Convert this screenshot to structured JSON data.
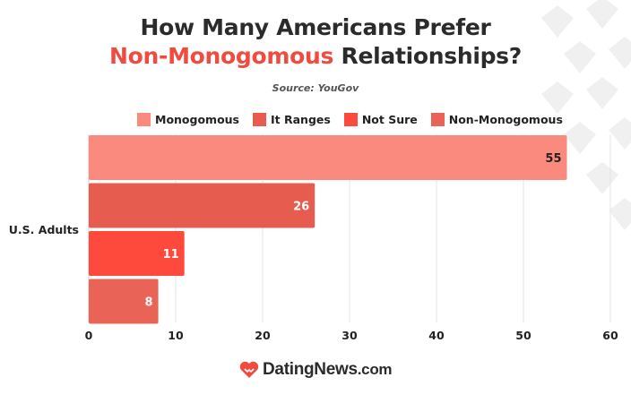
{
  "title": {
    "line1": "How Many Americans Prefer",
    "line2_accent": "Non-Monogomous",
    "line2_rest": "Relationships?"
  },
  "source": "Source: YouGov",
  "brand": {
    "name": "DatingNews",
    "suffix": ".com",
    "logo_icon": "heart-handshake-icon"
  },
  "colors": {
    "accent": "#ef4b3f",
    "grid": "#e5e5e5",
    "text": "#2b2b2b"
  },
  "chart_data": {
    "type": "bar",
    "orientation": "horizontal",
    "categories": [
      "U.S. Adults"
    ],
    "series": [
      {
        "name": "Monogomous",
        "values": [
          55
        ],
        "color": "#fb8a7e"
      },
      {
        "name": "It Ranges",
        "values": [
          26
        ],
        "color": "#e65c4f"
      },
      {
        "name": "Not Sure",
        "values": [
          11
        ],
        "color": "#fd4a3d"
      },
      {
        "name": "Non-Monogomous",
        "values": [
          8
        ],
        "color": "#e96356"
      }
    ],
    "xlim": [
      0,
      60
    ],
    "xticks": [
      0,
      10,
      20,
      30,
      40,
      50,
      60
    ],
    "grid": true,
    "legend": "top"
  }
}
